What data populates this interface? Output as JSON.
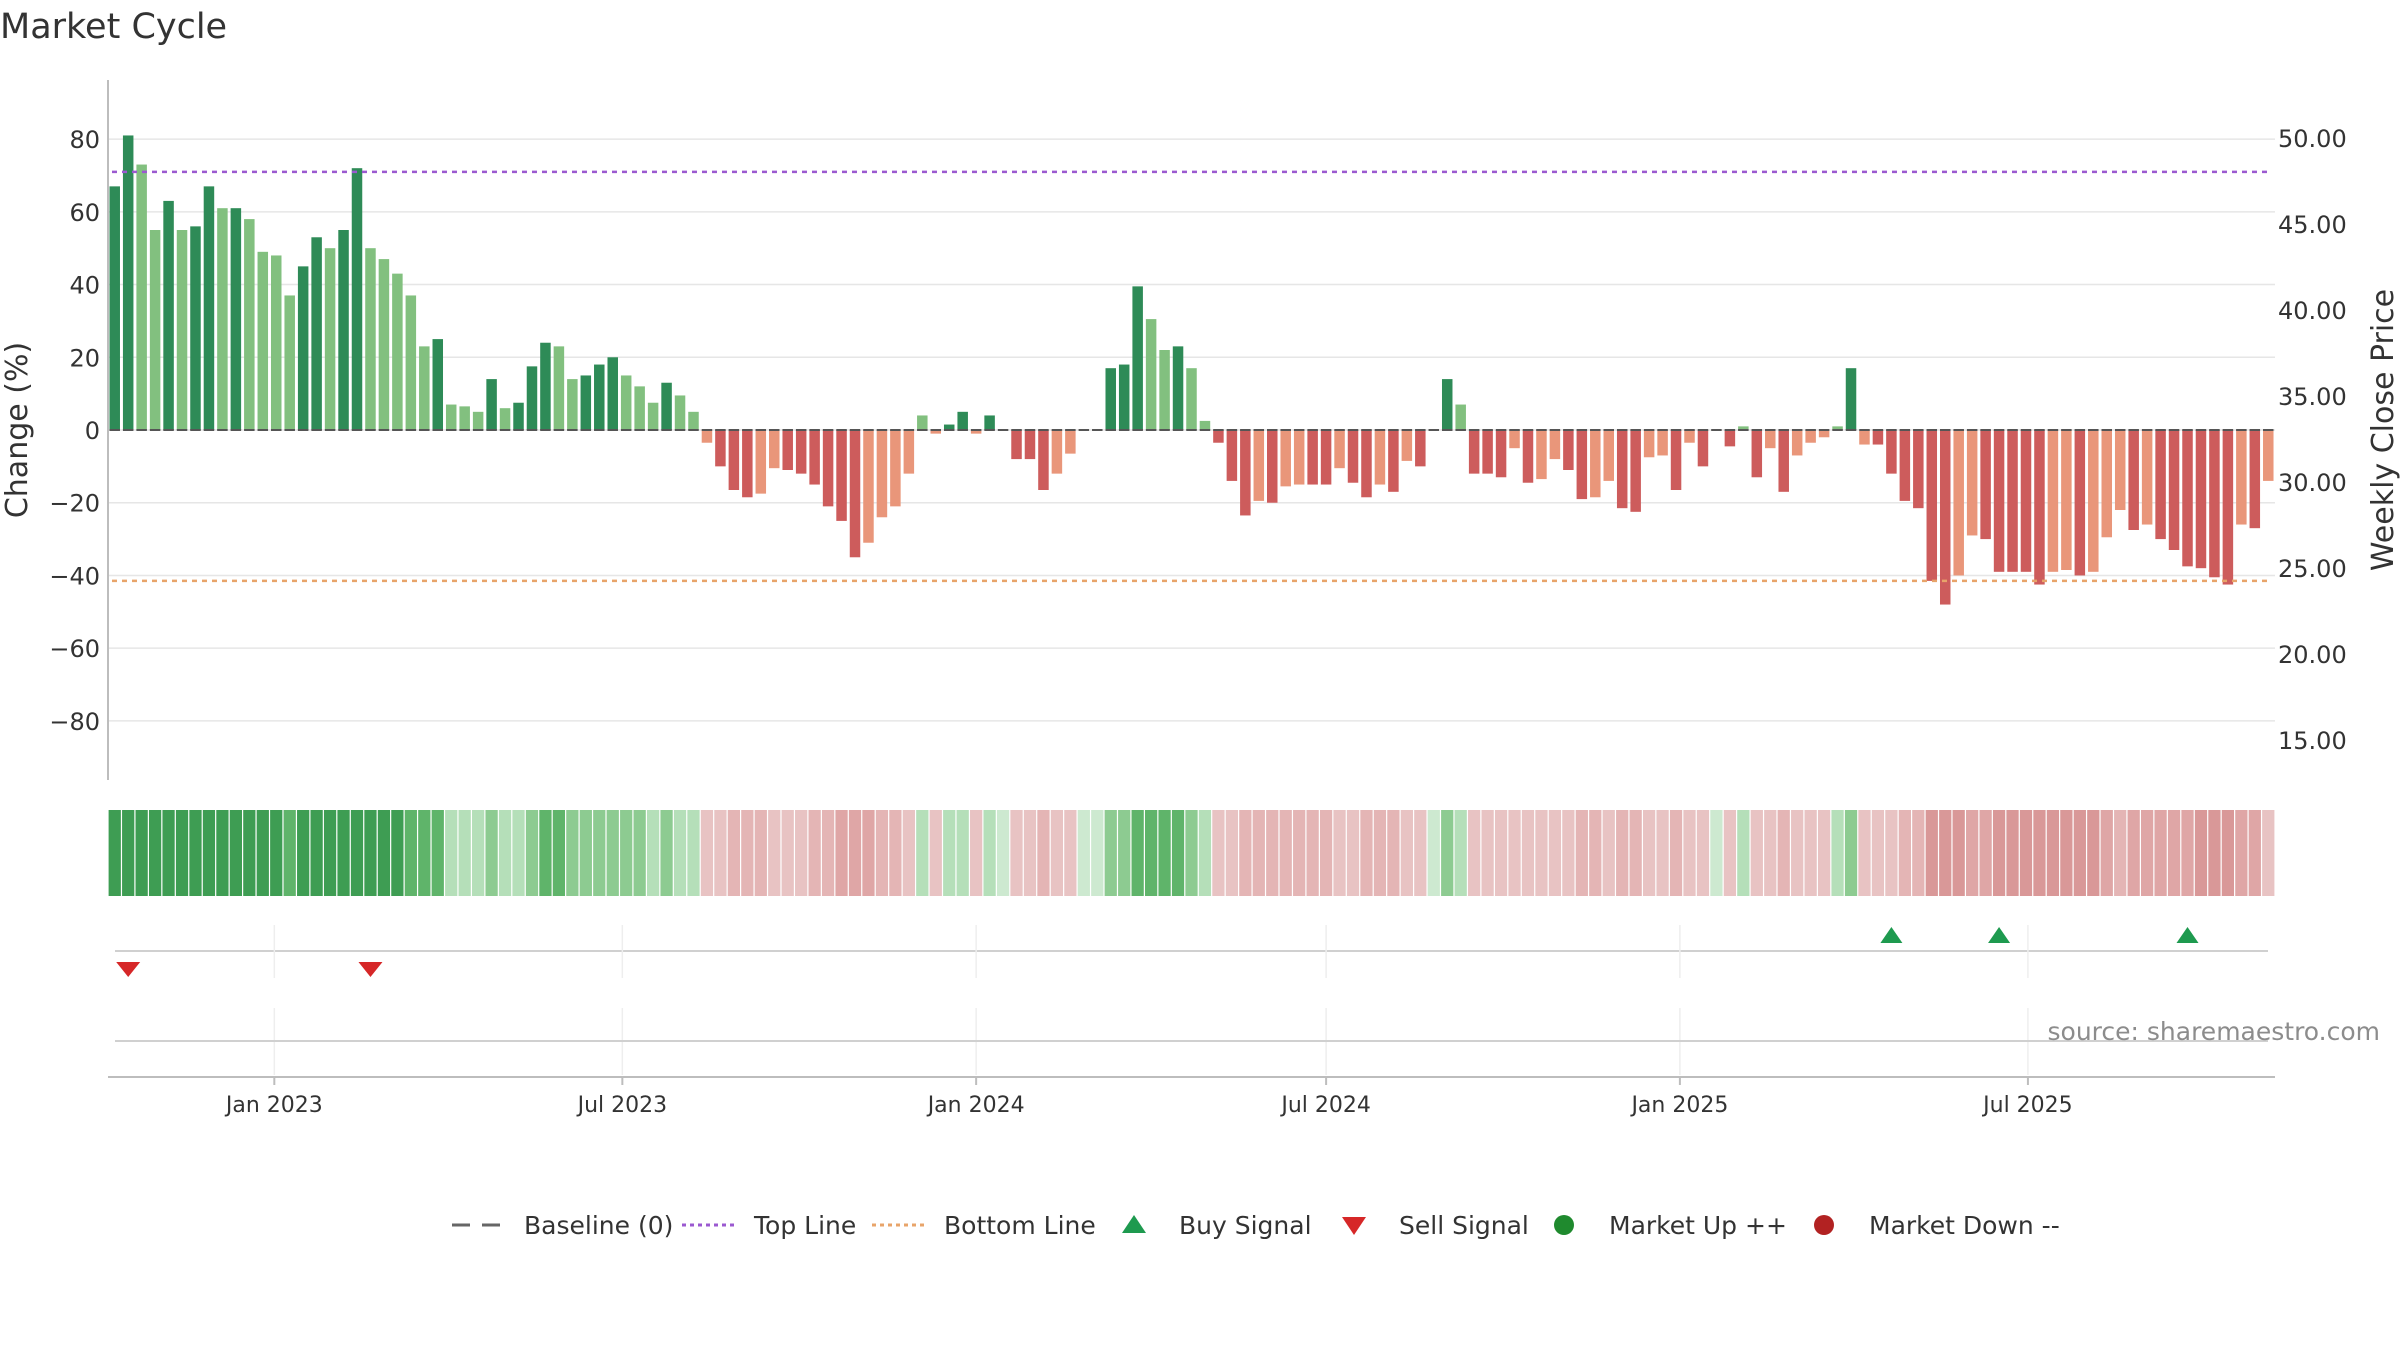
{
  "chart_data": {
    "type": "bar",
    "title": "Market Cycle",
    "ylabel": "Change (%)",
    "y2label": "Weekly Close Price",
    "ylim": [
      -88,
      88
    ],
    "y2lim": [
      12.0,
      51.5
    ],
    "left_ticks": [
      "80",
      "60",
      "40",
      "20",
      "0",
      "−20",
      "−40",
      "−60",
      "−80"
    ],
    "left_tick_values": [
      80,
      60,
      40,
      20,
      0,
      -20,
      -40,
      -60,
      -80
    ],
    "right_ticks": [
      "50.00",
      "45.00",
      "40.00",
      "35.00",
      "30.00",
      "25.00",
      "20.00",
      "15.00"
    ],
    "right_tick_values": [
      50,
      45,
      40,
      35,
      30,
      25,
      20,
      15
    ],
    "top_line": 71,
    "bottom_line": -41.5,
    "x_start": "2022-10-10",
    "week_days": 7,
    "x_ticks": [
      {
        "label": "Jan 2023",
        "date": "2023-01-01"
      },
      {
        "label": "Jul 2023",
        "date": "2023-07-01"
      },
      {
        "label": "Jan 2024",
        "date": "2024-01-01"
      },
      {
        "label": "Jul 2024",
        "date": "2024-07-01"
      },
      {
        "label": "Jan 2025",
        "date": "2025-01-01"
      },
      {
        "label": "Jul 2025",
        "date": "2025-07-01"
      }
    ],
    "values": [
      67,
      81,
      73,
      55,
      63,
      55,
      56,
      67,
      61,
      61,
      58,
      49,
      48,
      37,
      45,
      53,
      50,
      55,
      72,
      50,
      47,
      43,
      37,
      23,
      25,
      7,
      6.5,
      5,
      14,
      6,
      7.5,
      17.5,
      24,
      23,
      14,
      15,
      18,
      20,
      15,
      12,
      7.5,
      13,
      9.5,
      5,
      -3.5,
      -10,
      -16.5,
      -18.5,
      -17.5,
      -10.5,
      -11,
      -12,
      -15,
      -21,
      -25,
      -35,
      -31,
      -24,
      -21,
      -12,
      4,
      -1,
      1.5,
      5,
      -1,
      4,
      0,
      -8,
      -8,
      -16.5,
      -12,
      -6.5,
      0,
      0,
      17,
      18,
      39.5,
      30.5,
      22,
      23,
      17,
      2.5,
      -3.5,
      -14,
      -23.5,
      -19.5,
      -20,
      -15.5,
      -15,
      -15,
      -15,
      -10.5,
      -14.5,
      -18.5,
      -15,
      -17,
      -8.5,
      -10,
      0,
      14,
      7,
      -12,
      -12,
      -13,
      -5,
      -14.5,
      -13.5,
      -8,
      -11,
      -19,
      -18.5,
      -14,
      -21.5,
      -22.5,
      -7.5,
      -7,
      -16.5,
      -3.5,
      -10,
      0,
      -4.5,
      1,
      -13,
      -5,
      -17,
      -7,
      -3.5,
      -2,
      1,
      17,
      -4,
      -4,
      -12,
      -19.5,
      -21.5,
      -41.5,
      -48,
      -40,
      -29,
      -30,
      -39,
      -39,
      -39,
      -42.5,
      -39,
      -38.5,
      -40,
      -39,
      -29.5,
      -22,
      -27.5,
      -26,
      -30,
      -33,
      -37.5,
      -38,
      -40.5,
      -42.5,
      -26,
      -27,
      -14
    ],
    "bar_colors": {
      "up_strong": "#2e8b57",
      "up_light": "#82c07f",
      "down_strong": "#cd5c5c",
      "down_light": "#e9967a"
    },
    "strength_colors": [
      "#3e9d53",
      "#5fb46a",
      "#8dcb91",
      "#b5dfb9",
      "#cde9d0",
      "#e8c3c3",
      "#e4b5b5",
      "#dfa6a6",
      "#d99898"
    ],
    "top_line_color": "#9b59d0",
    "bottom_line_color": "#e8a46a",
    "buy_signals": [
      132,
      140,
      154
    ],
    "sell_signals": [
      1,
      19
    ],
    "buy_color": "#1e9a4f",
    "sell_color": "#d62728",
    "legend": [
      {
        "label": "Baseline (0)",
        "marker": "dash",
        "color": "#666666"
      },
      {
        "label": "Top Line",
        "marker": "dot-line",
        "color": "#9b59d0"
      },
      {
        "label": "Bottom Line",
        "marker": "dot-line",
        "color": "#e8a46a"
      },
      {
        "label": "Buy Signal",
        "marker": "triangle-up",
        "color": "#1e9a4f"
      },
      {
        "label": "Sell Signal",
        "marker": "triangle-down",
        "color": "#d62728"
      },
      {
        "label": "Market Up ++",
        "marker": "circle",
        "color": "#1f8a2e"
      },
      {
        "label": "Market Down --",
        "marker": "circle",
        "color": "#b22222"
      }
    ],
    "source": "source: sharemaestro.com",
    "grid": true
  }
}
